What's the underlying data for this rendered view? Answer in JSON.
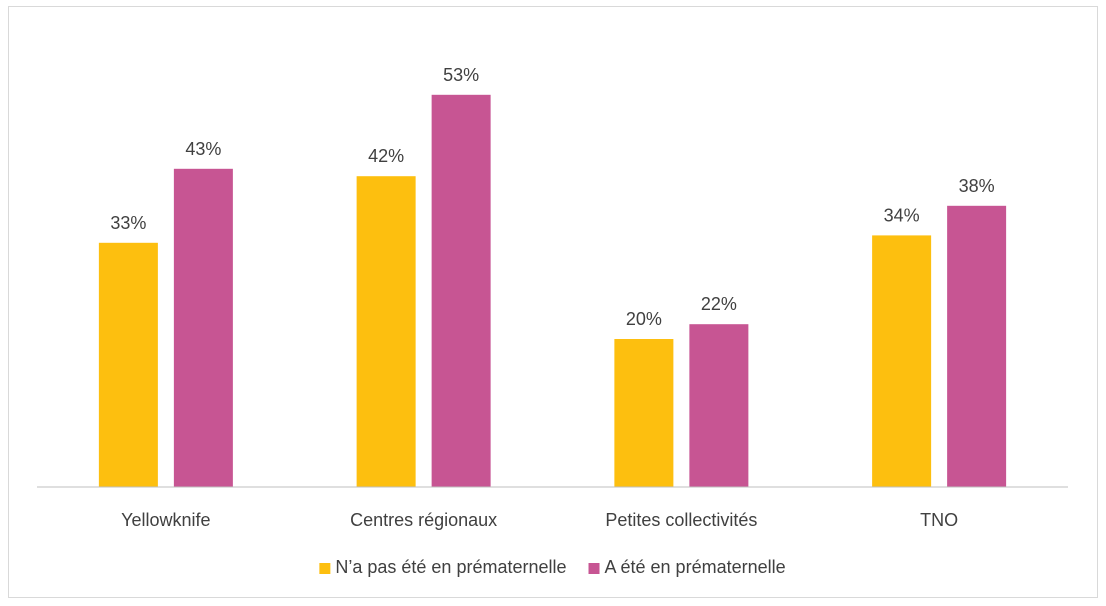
{
  "chart_data": {
    "type": "bar",
    "categories": [
      "Yellowknife",
      "Centres régionaux",
      "Petites collectivités",
      "TNO"
    ],
    "series": [
      {
        "name": "N’a pas été en prématernelle",
        "values": [
          33,
          42,
          20,
          34
        ],
        "labels": [
          "33%",
          "42%",
          "20%",
          "34%"
        ],
        "color": "#FDBF0F"
      },
      {
        "name": "A été en prématernelle",
        "values": [
          43,
          53,
          22,
          38
        ],
        "labels": [
          "43%",
          "53%",
          "22%",
          "38%"
        ],
        "color": "#C75593"
      }
    ],
    "ylim": [
      0,
      60
    ],
    "grid": false,
    "legend_position": "bottom",
    "axis_color": "#bfbfbf",
    "text_color": "#404040"
  }
}
